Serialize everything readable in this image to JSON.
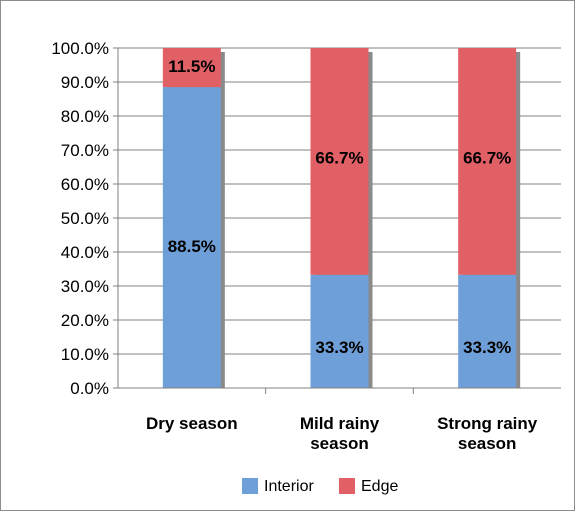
{
  "chart_data": {
    "type": "bar",
    "stacked": true,
    "categories": [
      [
        "Dry season"
      ],
      [
        "Mild rainy",
        "season"
      ],
      [
        "Strong rainy",
        "season"
      ]
    ],
    "series": [
      {
        "name": "Interior",
        "values": [
          88.5,
          33.3,
          33.3
        ],
        "labels": [
          "88.5%",
          "33.3%",
          "33.3%"
        ],
        "color": "#6f9fd8"
      },
      {
        "name": "Edge",
        "values": [
          11.5,
          66.7,
          66.7
        ],
        "labels": [
          "11.5%",
          "66.7%",
          "66.7%"
        ],
        "color": "#e06066"
      }
    ],
    "yticks": [
      "0.0%",
      "10.0%",
      "20.0%",
      "30.0%",
      "40.0%",
      "50.0%",
      "60.0%",
      "70.0%",
      "80.0%",
      "90.0%",
      "100.0%"
    ],
    "ylim": [
      0,
      100
    ],
    "grid": true,
    "legend": "bottom-center"
  }
}
